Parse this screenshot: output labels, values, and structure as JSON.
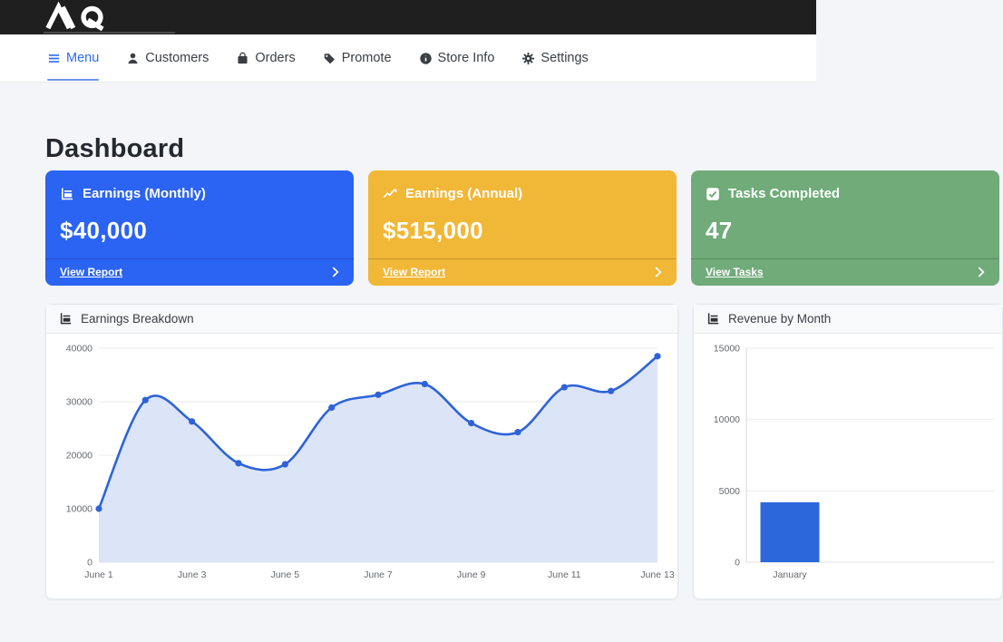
{
  "topbar": {
    "logo": "MQ"
  },
  "nav": {
    "items": [
      {
        "label": "Menu",
        "icon": "hamburger-icon",
        "active": true
      },
      {
        "label": "Customers",
        "icon": "person-icon",
        "active": false
      },
      {
        "label": "Orders",
        "icon": "bag-icon",
        "active": false
      },
      {
        "label": "Promote",
        "icon": "tag-icon",
        "active": false
      },
      {
        "label": "Store Info",
        "icon": "info-icon",
        "active": false
      },
      {
        "label": "Settings",
        "icon": "gear-icon",
        "active": false
      }
    ],
    "active_color": "#2e6bf0"
  },
  "page": {
    "title": "Dashboard"
  },
  "cards": [
    {
      "title": "Earnings (Monthly)",
      "value": "$40,000",
      "link": "View Report",
      "color": "#2b63f2",
      "icon": "bar-chart-icon"
    },
    {
      "title": "Earnings (Annual)",
      "value": "$515,000",
      "link": "View Report",
      "color": "#f1b737",
      "icon": "line-chart-icon"
    },
    {
      "title": "Tasks Completed",
      "value": "47",
      "link": "View Tasks",
      "color": "#70ab79",
      "icon": "check-square-icon"
    }
  ],
  "chart_data": [
    {
      "type": "line",
      "title": "Earnings Breakdown",
      "x": [
        "June 1",
        "June 2",
        "June 3",
        "June 4",
        "June 5",
        "June 6",
        "June 7",
        "June 8",
        "June 9",
        "June 10",
        "June 11",
        "June 12",
        "June 13"
      ],
      "values": [
        10000,
        30300,
        26300,
        18500,
        18300,
        28900,
        31300,
        33300,
        26000,
        24300,
        32700,
        32000,
        38500
      ],
      "xtick_every": 2,
      "ylim": [
        0,
        40000
      ],
      "yticks": [
        0,
        10000,
        20000,
        30000,
        40000
      ],
      "line_color": "#2e63d8",
      "fill_color": "#dce5f7",
      "grid": true,
      "legend": false
    },
    {
      "type": "bar",
      "title": "Revenue by Month",
      "categories": [
        "January"
      ],
      "values": [
        4200
      ],
      "ylim": [
        0,
        15000
      ],
      "yticks": [
        0,
        5000,
        10000,
        15000
      ],
      "bar_color": "#2d68da",
      "grid": true,
      "legend": false
    }
  ]
}
